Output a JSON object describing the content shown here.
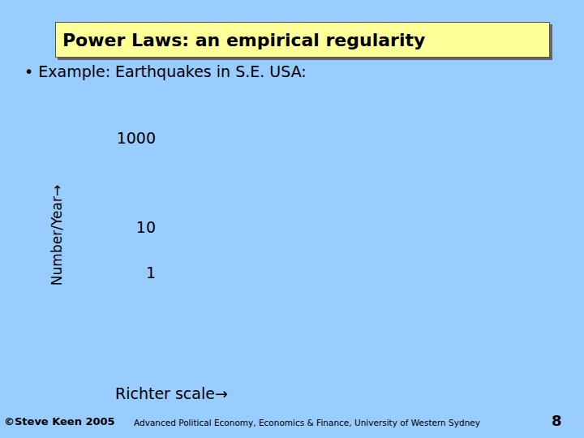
{
  "chart_data": {
    "type": "scatter",
    "title": "Power Laws: an empirical regularity",
    "subtitle": "• Example: Earthquakes in S.E. USA:",
    "x_label": "Richter scale→",
    "y_label": "Number/Year→",
    "x": [],
    "values": [],
    "log": "y",
    "ylim": [
      1,
      1000
    ],
    "yticks": [
      1,
      10,
      1000
    ],
    "tick_labels": "y",
    "grid": false
  },
  "footer": {
    "left": "©Steve Keen 2005",
    "center": "Advanced Political Economy, Economics & Finance, University of Western Sydney",
    "page": "8"
  }
}
